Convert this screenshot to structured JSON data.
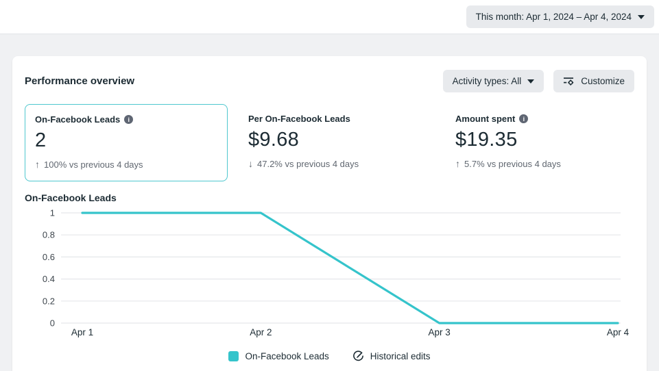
{
  "topbar": {
    "date_range_label": "This month: Apr 1, 2024 – Apr 4, 2024"
  },
  "panel": {
    "title": "Performance overview",
    "activity_filter_label": "Activity types: All",
    "customize_label": "Customize"
  },
  "metrics": [
    {
      "label": "On-Facebook Leads",
      "info_icon": "info-icon",
      "value": "2",
      "trend_arrow": "↑",
      "trend_text": "100% vs previous 4 days",
      "selected": true
    },
    {
      "label": "Per On-Facebook Leads",
      "value": "$9.68",
      "trend_arrow": "↓",
      "trend_text": "47.2% vs previous 4 days",
      "selected": false
    },
    {
      "label": "Amount spent",
      "info_icon": "info-icon",
      "value": "$19.35",
      "trend_arrow": "↑",
      "trend_text": "5.7% vs previous 4 days",
      "selected": false
    }
  ],
  "chart": {
    "section_title": "On-Facebook Leads"
  },
  "chart_data": {
    "type": "line",
    "x": [
      "Apr 1",
      "Apr 2",
      "Apr 3",
      "Apr 4"
    ],
    "series": [
      {
        "name": "On-Facebook Leads",
        "values": [
          1,
          1,
          0,
          0
        ],
        "color": "#35c4cb"
      }
    ],
    "title": "On-Facebook Leads",
    "xlabel": "",
    "ylabel": "",
    "ylim": [
      0,
      1
    ],
    "yticks": [
      1,
      0.8,
      0.6,
      0.4,
      0.2,
      0
    ],
    "grid": true,
    "legend_position": "bottom",
    "legend": [
      "On-Facebook Leads",
      "Historical edits"
    ]
  },
  "legend": {
    "series_label": "On-Facebook Leads",
    "historical_label": "Historical edits"
  },
  "colors": {
    "accent_teal": "#35c4cb",
    "selected_card_border": "#4ec7ce",
    "button_bg": "#e8eaed",
    "text_primary": "#1c2b33",
    "text_secondary": "#606770",
    "gridline": "#e5e7ea",
    "page_bg": "#f0f1f3"
  }
}
